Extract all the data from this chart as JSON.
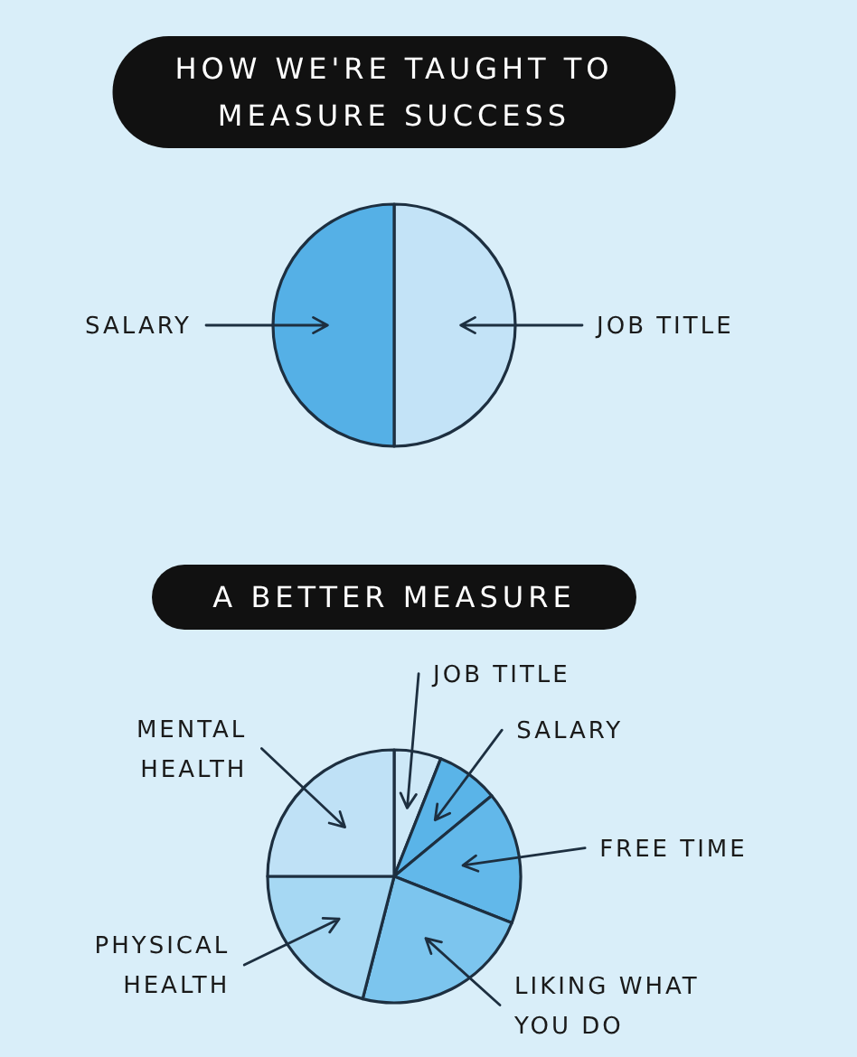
{
  "chart_data": [
    {
      "type": "pie",
      "title": "HOW WE'RE TAUGHT TO MEASURE SUCCESS",
      "categories": [
        "JOB TITLE",
        "SALARY"
      ],
      "values": [
        50,
        50
      ],
      "colors": [
        "#c3e3f7",
        "#55b0e6"
      ]
    },
    {
      "type": "pie",
      "title": "A BETTER MEASURE",
      "categories": [
        "JOB TITLE",
        "SALARY",
        "FREE TIME",
        "LIKING WHAT YOU DO",
        "PHYSICAL HEALTH",
        "MENTAL HEALTH"
      ],
      "values": [
        6,
        8,
        17,
        23,
        21,
        25
      ],
      "colors": [
        "#cde8f7",
        "#5ab4e8",
        "#62b8ea",
        "#7cc5ee",
        "#a6d8f3",
        "#bfe1f6"
      ]
    }
  ]
}
